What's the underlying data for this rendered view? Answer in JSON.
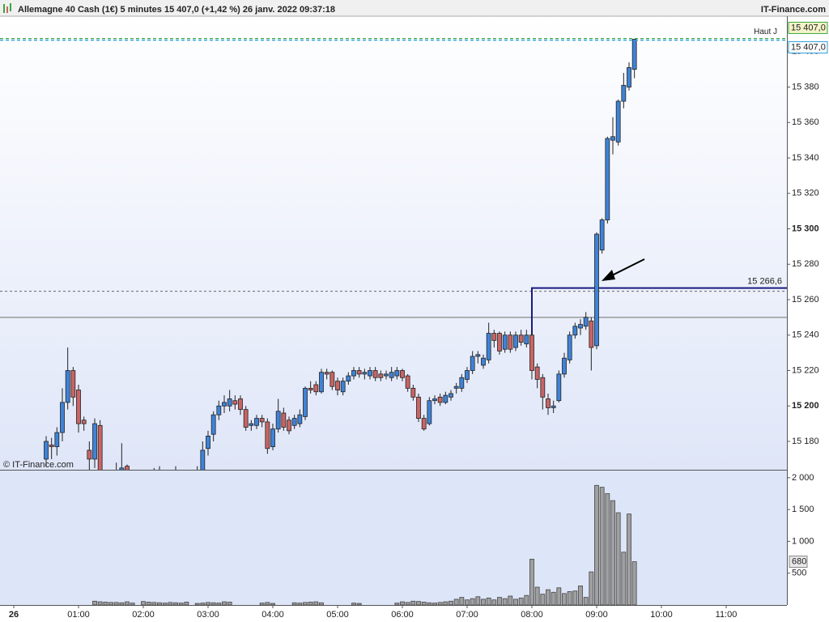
{
  "chart_data": {
    "type": "candlestick",
    "title": "Allemagne 40 Cash (1€) 5 minutes 15 407,0 (+1,42 %) 26 janv. 2022 09:37:18",
    "brand": "IT-Finance.com",
    "watermark": "© IT-Finance.com",
    "up_color": "#3f83d8",
    "down_color": "#c96565",
    "volume_color": "#a0a0a0",
    "x": [
      30,
      35,
      40,
      45,
      50,
      55,
      60,
      65,
      70,
      75,
      80,
      85,
      90,
      95,
      100,
      105,
      110,
      115,
      120,
      125,
      130,
      135,
      140,
      145,
      150,
      155,
      160,
      165,
      170,
      175,
      180,
      185,
      190,
      195,
      200,
      205,
      210,
      215,
      220,
      225,
      230,
      235,
      240,
      245,
      250,
      255,
      260,
      265,
      270,
      275,
      280,
      285,
      290,
      295,
      300,
      305,
      310,
      315,
      320,
      325,
      330,
      335,
      340,
      345,
      350,
      355,
      360,
      365,
      370,
      375,
      380,
      385,
      390,
      395,
      400,
      405,
      410,
      415,
      420,
      425,
      430,
      435,
      440,
      445,
      450,
      455,
      460,
      465,
      470,
      475,
      480,
      485,
      490,
      495,
      500,
      505,
      510,
      515,
      520,
      525,
      530,
      535,
      540,
      545,
      550,
      555,
      560,
      565,
      570,
      575
    ],
    "open": [
      15170,
      15178,
      15177,
      15185,
      15202,
      15220,
      15209,
      15192,
      15175,
      15170,
      15189,
      15160,
      15158,
      15162,
      15162,
      15166,
      15158,
      15155,
      15152,
      15156,
      15154,
      15163,
      15158,
      15153,
      15156,
      15162,
      15157,
      15155,
      15152,
      15160,
      15176,
      15184,
      15195,
      15200,
      15200,
      15203,
      15204,
      15198,
      15189,
      15189,
      15193,
      15191,
      15177,
      15187,
      15196,
      15192,
      15189,
      15190,
      15194,
      15210,
      15212,
      15208,
      15219,
      15219,
      15214,
      15208,
      15214,
      15217,
      15220,
      15218,
      15217,
      15220,
      15218,
      15217,
      15216,
      15217,
      15220,
      15217,
      15210,
      15205,
      15193,
      15190,
      15203,
      15205,
      15202,
      15205,
      15210,
      15210,
      15215,
      15220,
      15228,
      15223,
      15226,
      15241,
      15241,
      15232,
      15240,
      15233,
      15240,
      15235,
      15240,
      15222,
      15216,
      15204,
      15199,
      15203,
      15218,
      15226,
      15240,
      15244,
      15245,
      15248,
      15234,
      15288,
      15305,
      15350,
      15349,
      15372,
      15380,
      15390
    ],
    "high": [
      15183,
      15182,
      15188,
      15210,
      15233,
      15222,
      15212,
      15194,
      15180,
      15193,
      15192,
      15164,
      15162,
      15168,
      15179,
      15167,
      15162,
      15160,
      15158,
      15160,
      15165,
      15166,
      15161,
      15158,
      15166,
      15164,
      15160,
      15159,
      15166,
      15180,
      15186,
      15197,
      15203,
      15206,
      15209,
      15206,
      15206,
      15200,
      15192,
      15195,
      15195,
      15193,
      15190,
      15204,
      15199,
      15194,
      15195,
      15198,
      15211,
      15214,
      15214,
      15221,
      15221,
      15220,
      15216,
      15216,
      15219,
      15222,
      15222,
      15221,
      15222,
      15222,
      15220,
      15220,
      15222,
      15222,
      15221,
      15218,
      15212,
      15207,
      15195,
      15205,
      15206,
      15207,
      15208,
      15209,
      15213,
      15218,
      15222,
      15231,
      15231,
      15229,
      15247,
      15243,
      15242,
      15242,
      15242,
      15242,
      15243,
      15243,
      15242,
      15224,
      15218,
      15207,
      15203,
      15220,
      15230,
      15242,
      15247,
      15249,
      15253,
      15250,
      15298,
      15306,
      15352,
      15363,
      15373,
      15388,
      15394,
      15407
    ],
    "low": [
      15166,
      15170,
      15172,
      15180,
      15198,
      15200,
      15185,
      15186,
      15160,
      15165,
      15155,
      15152,
      15150,
      15155,
      15158,
      15155,
      15150,
      15148,
      15147,
      15150,
      15152,
      15156,
      15150,
      15148,
      15152,
      15155,
      15150,
      15149,
      15150,
      15155,
      15172,
      15180,
      15192,
      15196,
      15197,
      15198,
      15195,
      15186,
      15186,
      15187,
      15188,
      15173,
      15175,
      15185,
      15186,
      15184,
      15187,
      15188,
      15192,
      15207,
      15206,
      15207,
      15215,
      15209,
      15206,
      15206,
      15212,
      15215,
      15216,
      15215,
      15215,
      15214,
      15214,
      15215,
      15214,
      15215,
      15214,
      15208,
      15203,
      15191,
      15186,
      15189,
      15201,
      15200,
      15201,
      15203,
      15207,
      15208,
      15213,
      15218,
      15224,
      15221,
      15224,
      15233,
      15229,
      15230,
      15230,
      15231,
      15234,
      15233,
      15215,
      15210,
      15198,
      15195,
      15196,
      15202,
      15216,
      15224,
      15238,
      15240,
      15243,
      15220,
      15232,
      15286,
      15303,
      15342,
      15347,
      15368,
      15378,
      15385
    ],
    "close": [
      15180,
      15177,
      15185,
      15202,
      15220,
      15205,
      15190,
      15190,
      15170,
      15190,
      15160,
      15158,
      15156,
      15160,
      15165,
      15158,
      15155,
      15152,
      15156,
      15154,
      15163,
      15158,
      15153,
      15156,
      15162,
      15157,
      15155,
      15152,
      15160,
      15175,
      15183,
      15195,
      15200,
      15202,
      15204,
      15201,
      15198,
      15188,
      15190,
      15193,
      15191,
      15176,
      15187,
      15197,
      15188,
      15186,
      15193,
      15195,
      15210,
      15209,
      15208,
      15219,
      15218,
      15211,
      15209,
      15214,
      15217,
      15220,
      15218,
      15219,
      15220,
      15216,
      15216,
      15218,
      15219,
      15220,
      15216,
      15210,
      15205,
      15193,
      15187,
      15203,
      15204,
      15202,
      15206,
      15207,
      15211,
      15216,
      15220,
      15228,
      15229,
      15227,
      15241,
      15237,
      15231,
      15240,
      15232,
      15240,
      15236,
      15240,
      15220,
      15215,
      15205,
      15199,
      15200,
      15218,
      15227,
      15240,
      15245,
      15246,
      15250,
      15233,
      15297,
      15305,
      15351,
      15352,
      15372,
      15381,
      15391,
      15407
    ],
    "volume": [
      0,
      0,
      0,
      0,
      0,
      0,
      0,
      0,
      0,
      60,
      50,
      45,
      40,
      40,
      35,
      50,
      30,
      0,
      55,
      45,
      40,
      35,
      30,
      40,
      35,
      30,
      45,
      0,
      25,
      30,
      40,
      35,
      30,
      50,
      45,
      0,
      0,
      0,
      0,
      0,
      30,
      40,
      25,
      0,
      0,
      0,
      35,
      30,
      40,
      45,
      50,
      35,
      0,
      0,
      0,
      0,
      0,
      30,
      25,
      0,
      0,
      0,
      0,
      0,
      0,
      30,
      50,
      40,
      60,
      55,
      45,
      35,
      30,
      40,
      50,
      60,
      90,
      120,
      80,
      100,
      130,
      90,
      110,
      80,
      120,
      100,
      140,
      90,
      110,
      150,
      720,
      280,
      170,
      240,
      200,
      270,
      180,
      210,
      220,
      300,
      120,
      520,
      1880,
      1850,
      1750,
      1640,
      1450,
      830,
      1430,
      680
    ],
    "xlim": [
      -12.75,
      716.25
    ],
    "xticks": [
      {
        "value": 0,
        "label": "26"
      },
      {
        "value": 60,
        "label": "01:00"
      },
      {
        "value": 120,
        "label": "02:00"
      },
      {
        "value": 180,
        "label": "03:00"
      },
      {
        "value": 240,
        "label": "04:00"
      },
      {
        "value": 300,
        "label": "05:00"
      },
      {
        "value": 360,
        "label": "06:00"
      },
      {
        "value": 420,
        "label": "07:00"
      },
      {
        "value": 480,
        "label": "08:00"
      },
      {
        "value": 540,
        "label": "09:00"
      },
      {
        "value": 600,
        "label": "10:00"
      },
      {
        "value": 660,
        "label": "11:00"
      }
    ],
    "ylim": [
      15164,
      15420
    ],
    "yticks": [
      {
        "value": 15180,
        "label": "15 180"
      },
      {
        "value": 15200,
        "label": "15 200"
      },
      {
        "value": 15220,
        "label": "15 220"
      },
      {
        "value": 15240,
        "label": "15 240"
      },
      {
        "value": 15260,
        "label": "15 260"
      },
      {
        "value": 15280,
        "label": "15 280"
      },
      {
        "value": 15300,
        "label": "15 300"
      },
      {
        "value": 15320,
        "label": "15 320"
      },
      {
        "value": 15340,
        "label": "15 340"
      },
      {
        "value": 15360,
        "label": "15 360"
      },
      {
        "value": 15380,
        "label": "15 380"
      },
      {
        "value": 15400,
        "label": "15 400"
      }
    ],
    "vlim": [
      0,
      2100
    ],
    "vticks": [
      500,
      {
        "value": 1000,
        "label": "1 000"
      },
      {
        "value": 1500,
        "label": "1 500"
      },
      {
        "value": 2000,
        "label": "2 000"
      }
    ],
    "day_high": {
      "name": "Haut J",
      "value": 15407,
      "label": "15 407,0",
      "color": "#3aa83a"
    },
    "last": {
      "value": 15407,
      "label": "15 407,0",
      "color": "#2a9fd8"
    },
    "level": {
      "value": 15266.6,
      "label": "15 266,6",
      "start": 480,
      "color": "#1a1a80"
    },
    "reference_line": 15250,
    "last_volume": {
      "value": 680,
      "label": "680"
    }
  }
}
